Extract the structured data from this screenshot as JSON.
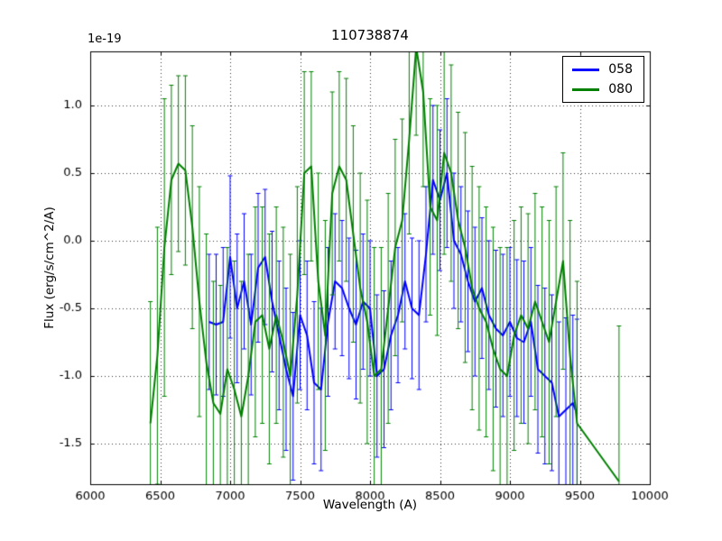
{
  "window": {
    "background": "#ffffff"
  },
  "chart_data": {
    "type": "line",
    "title": "110738874",
    "xlabel": "Wavelength (A)",
    "ylabel": "Flux (erg/s/cm^2/A)",
    "y_offset_text": "1e-19",
    "xlim": [
      6000,
      10000
    ],
    "ylim": [
      -1.8,
      1.4
    ],
    "x_ticks": [
      6000,
      6500,
      7000,
      7500,
      8000,
      8500,
      9000,
      9500,
      10000
    ],
    "x_tick_labels": [
      "6000",
      "6500",
      "7000",
      "7500",
      "8000",
      "8500",
      "9000",
      "9500",
      "10000"
    ],
    "y_ticks": [
      -1.5,
      -1.0,
      -0.5,
      0.0,
      0.5,
      1.0
    ],
    "y_tick_labels": [
      "-1.5",
      "-1.0",
      "-0.5",
      "0.0",
      "0.5",
      "1.0"
    ],
    "grid": true,
    "grid_style": "dotted",
    "legend_position": "upper right",
    "series": [
      {
        "name": "058",
        "color": "#0000ff",
        "x": [
          6850,
          6900,
          6950,
          7000,
          7050,
          7100,
          7150,
          7200,
          7250,
          7300,
          7350,
          7400,
          7450,
          7500,
          7550,
          7600,
          7650,
          7700,
          7750,
          7800,
          7850,
          7900,
          7950,
          8000,
          8050,
          8100,
          8150,
          8200,
          8250,
          8300,
          8350,
          8400,
          8450,
          8500,
          8550,
          8600,
          8650,
          8700,
          8750,
          8800,
          8850,
          8900,
          8950,
          9000,
          9050,
          9100,
          9150,
          9200,
          9250,
          9300,
          9350,
          9400,
          9450,
          9480
        ],
        "y": [
          -0.6,
          -0.62,
          -0.6,
          -0.12,
          -0.5,
          -0.3,
          -0.62,
          -0.2,
          -0.12,
          -0.45,
          -0.7,
          -0.95,
          -1.15,
          -0.55,
          -0.7,
          -1.05,
          -1.1,
          -0.6,
          -0.3,
          -0.35,
          -0.5,
          -0.62,
          -0.45,
          -0.5,
          -1.0,
          -0.95,
          -0.7,
          -0.55,
          -0.3,
          -0.5,
          -0.55,
          -0.1,
          0.45,
          0.3,
          0.5,
          0.0,
          -0.1,
          -0.3,
          -0.45,
          -0.35,
          -0.55,
          -0.65,
          -0.7,
          -0.6,
          -0.72,
          -0.75,
          -0.6,
          -0.95,
          -1.0,
          -1.05,
          -1.3,
          -1.25,
          -1.2,
          -1.28
        ],
        "yerr": [
          0.5,
          0.52,
          0.55,
          0.6,
          0.55,
          0.5,
          0.52,
          0.55,
          0.5,
          0.52,
          0.55,
          0.6,
          0.62,
          0.55,
          0.55,
          0.6,
          0.6,
          0.55,
          0.5,
          0.5,
          0.52,
          0.55,
          0.5,
          0.5,
          0.6,
          0.58,
          0.55,
          0.5,
          0.5,
          0.52,
          0.55,
          0.5,
          0.55,
          0.52,
          0.55,
          0.5,
          0.5,
          0.52,
          0.55,
          0.52,
          0.55,
          0.58,
          0.6,
          0.55,
          0.58,
          0.6,
          0.55,
          0.62,
          0.65,
          0.65,
          0.7,
          0.68,
          0.65,
          0.7
        ]
      },
      {
        "name": "080",
        "color": "#008000",
        "x": [
          6430,
          6480,
          6530,
          6580,
          6630,
          6680,
          6730,
          6780,
          6830,
          6880,
          6930,
          6980,
          7030,
          7080,
          7130,
          7180,
          7230,
          7280,
          7330,
          7380,
          7430,
          7480,
          7530,
          7580,
          7630,
          7680,
          7730,
          7780,
          7830,
          7880,
          7930,
          7980,
          8030,
          8080,
          8130,
          8180,
          8230,
          8280,
          8330,
          8380,
          8430,
          8480,
          8530,
          8580,
          8630,
          8680,
          8730,
          8780,
          8830,
          8880,
          8930,
          8980,
          9030,
          9080,
          9130,
          9180,
          9230,
          9280,
          9330,
          9380,
          9430,
          9480,
          9780
        ],
        "y": [
          -1.35,
          -0.85,
          -0.05,
          0.45,
          0.57,
          0.52,
          0.1,
          -0.45,
          -0.9,
          -1.2,
          -1.28,
          -0.95,
          -1.1,
          -1.3,
          -1.0,
          -0.6,
          -0.55,
          -0.8,
          -0.55,
          -0.75,
          -1.0,
          -0.4,
          0.5,
          0.55,
          -0.3,
          -0.7,
          0.35,
          0.55,
          0.45,
          0.05,
          -0.35,
          -0.6,
          -1.0,
          -0.95,
          -0.5,
          -0.05,
          0.15,
          0.75,
          1.43,
          1.1,
          0.25,
          0.15,
          0.65,
          0.5,
          0.15,
          -0.05,
          -0.35,
          -0.5,
          -0.6,
          -0.8,
          -0.95,
          -1.0,
          -0.7,
          -0.55,
          -0.65,
          -0.45,
          -0.6,
          -0.75,
          -0.45,
          -0.15,
          -0.85,
          -1.35,
          -1.78
        ],
        "yerr": [
          0.9,
          0.95,
          1.1,
          0.7,
          0.65,
          0.7,
          0.75,
          0.85,
          0.95,
          0.9,
          0.95,
          0.9,
          0.95,
          1.0,
          0.9,
          0.85,
          0.8,
          0.85,
          0.8,
          0.85,
          0.9,
          0.8,
          0.75,
          0.7,
          0.8,
          0.85,
          0.75,
          0.7,
          0.75,
          0.8,
          0.85,
          0.9,
          0.95,
          0.9,
          0.85,
          0.8,
          0.75,
          0.7,
          0.65,
          0.7,
          0.8,
          0.85,
          0.75,
          0.8,
          0.8,
          0.85,
          0.9,
          0.9,
          0.85,
          0.9,
          0.9,
          0.95,
          0.85,
          0.8,
          0.85,
          0.8,
          0.85,
          0.9,
          0.85,
          0.8,
          1.0,
          1.05,
          1.15
        ]
      }
    ]
  }
}
